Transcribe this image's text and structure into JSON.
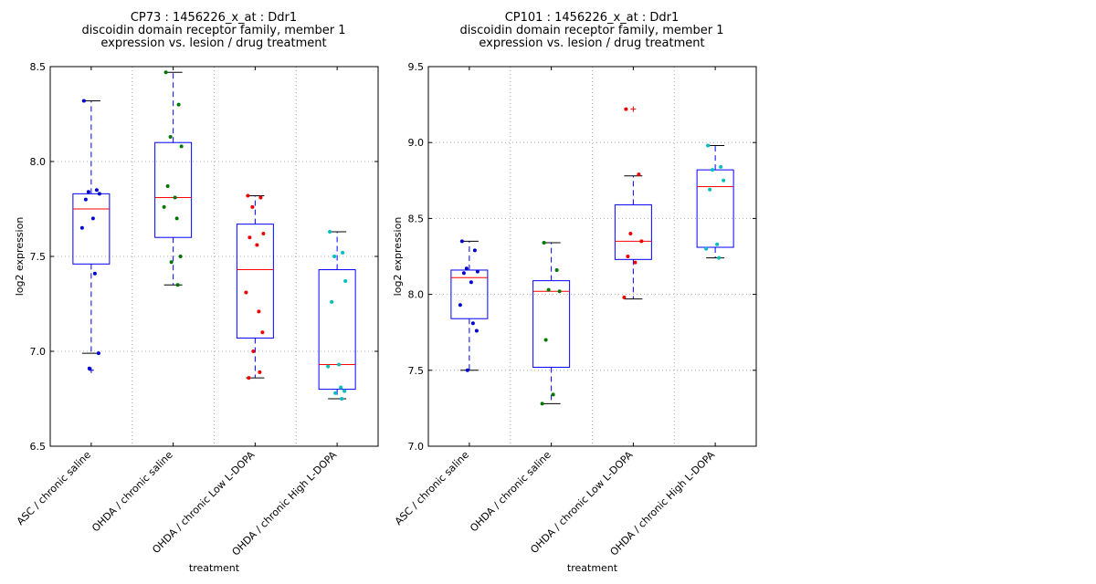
{
  "chart_data": [
    {
      "type": "box",
      "title_lines": [
        "CP73 : 1456226_x_at : Ddr1",
        "discoidin domain receptor family, member 1",
        "expression vs. lesion / drug treatment"
      ],
      "xlabel": "treatment",
      "ylabel": "log2 expression",
      "ylim": [
        6.5,
        8.5
      ],
      "yticks": [
        "6.5",
        "7.0",
        "7.5",
        "8.0",
        "8.5"
      ],
      "grid": true,
      "categories": [
        "ASC / chronic saline",
        "OHDA / chronic saline",
        "OHDA / chronic Low L-DOPA",
        "OHDA / chronic High L-DOPA"
      ],
      "colors": [
        "#0000cc",
        "#007700",
        "#ee0000",
        "#00bfbf"
      ],
      "boxes": [
        {
          "q1": 7.46,
          "median": 7.75,
          "q3": 7.83,
          "whisker_low": 6.99,
          "whisker_high": 8.32,
          "outliers": [
            6.9
          ],
          "points": [
            8.32,
            7.85,
            7.84,
            7.83,
            7.8,
            7.7,
            7.65,
            7.41,
            6.99,
            6.91
          ]
        },
        {
          "q1": 7.6,
          "median": 7.81,
          "q3": 8.1,
          "whisker_low": 7.35,
          "whisker_high": 8.47,
          "outliers": [],
          "points": [
            8.47,
            8.3,
            8.13,
            8.08,
            7.87,
            7.81,
            7.76,
            7.7,
            7.5,
            7.47,
            7.35
          ]
        },
        {
          "q1": 7.07,
          "median": 7.43,
          "q3": 7.67,
          "whisker_low": 6.86,
          "whisker_high": 7.82,
          "outliers": [],
          "points": [
            7.82,
            7.81,
            7.76,
            7.62,
            7.6,
            7.56,
            7.31,
            7.21,
            7.1,
            7.0,
            6.89,
            6.86
          ]
        },
        {
          "q1": 6.8,
          "median": 6.93,
          "q3": 7.43,
          "whisker_low": 6.75,
          "whisker_high": 7.63,
          "outliers": [],
          "points": [
            7.63,
            7.52,
            7.5,
            7.37,
            7.26,
            6.93,
            6.92,
            6.81,
            6.79,
            6.78,
            6.75
          ]
        }
      ]
    },
    {
      "type": "box",
      "title_lines": [
        "CP101 : 1456226_x_at : Ddr1",
        "discoidin domain receptor family, member 1",
        "expression vs. lesion / drug treatment"
      ],
      "xlabel": "treatment",
      "ylabel": "log2 expression",
      "ylim": [
        7.0,
        9.5
      ],
      "yticks": [
        "7.0",
        "7.5",
        "8.0",
        "8.5",
        "9.0",
        "9.5"
      ],
      "grid": true,
      "categories": [
        "ASC / chronic saline",
        "OHDA / chronic saline",
        "OHDA / chronic Low L-DOPA",
        "OHDA / chronic High L-DOPA"
      ],
      "colors": [
        "#0000cc",
        "#007700",
        "#ee0000",
        "#00bfbf"
      ],
      "boxes": [
        {
          "q1": 7.84,
          "median": 8.11,
          "q3": 8.16,
          "whisker_low": 7.5,
          "whisker_high": 8.35,
          "outliers": [],
          "points": [
            8.35,
            8.29,
            8.17,
            8.15,
            8.14,
            8.08,
            7.93,
            7.81,
            7.76,
            7.5
          ]
        },
        {
          "q1": 7.52,
          "median": 8.02,
          "q3": 8.09,
          "whisker_low": 7.28,
          "whisker_high": 8.34,
          "outliers": [],
          "points": [
            8.34,
            8.16,
            8.03,
            8.02,
            7.7,
            7.34,
            7.28
          ]
        },
        {
          "q1": 8.23,
          "median": 8.35,
          "q3": 8.59,
          "whisker_low": 7.97,
          "whisker_high": 8.78,
          "outliers": [
            9.22
          ],
          "points": [
            9.22,
            8.79,
            8.4,
            8.35,
            8.25,
            8.21,
            7.98
          ]
        },
        {
          "q1": 8.31,
          "median": 8.71,
          "q3": 8.82,
          "whisker_low": 8.24,
          "whisker_high": 8.98,
          "outliers": [],
          "points": [
            8.98,
            8.84,
            8.82,
            8.75,
            8.69,
            8.33,
            8.3,
            8.24
          ]
        }
      ]
    }
  ]
}
